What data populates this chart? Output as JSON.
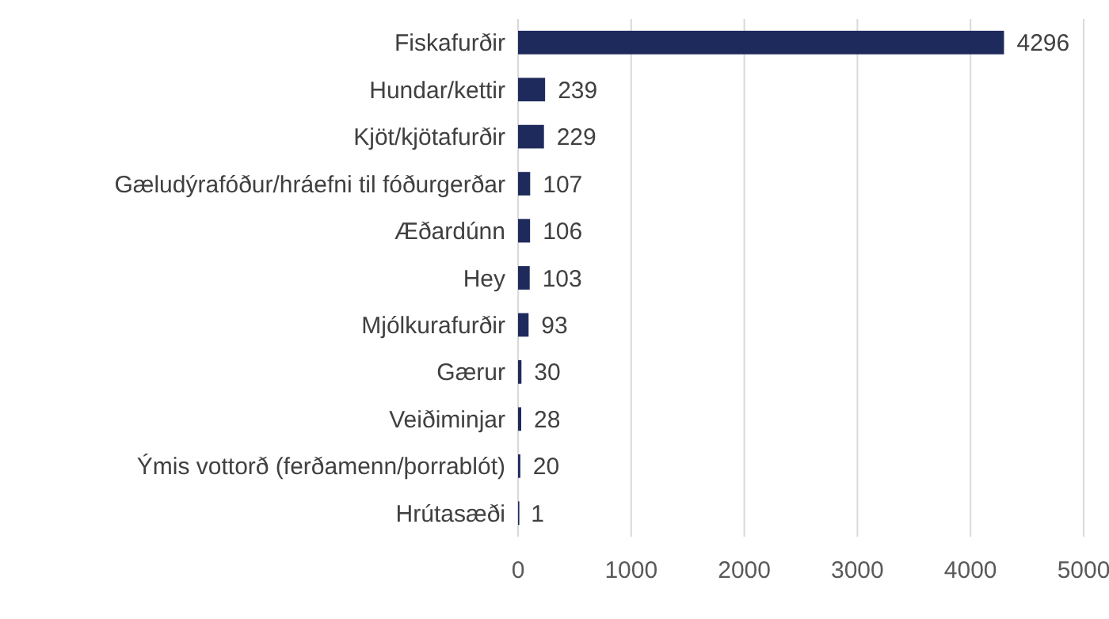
{
  "chart_data": {
    "type": "bar",
    "orientation": "horizontal",
    "categories": [
      "Fiskafurðir",
      "Hundar/kettir",
      "Kjöt/kjötafurðir",
      "Gæludýrafóður/hráefni til fóðurgerðar",
      "Æðardúnn",
      "Hey",
      "Mjólkurafurðir",
      "Gærur",
      "Veiðiminjar",
      "Ýmis vottorð (ferðamenn/þorrablót)",
      "Hrútasæði"
    ],
    "values": [
      4296,
      239,
      229,
      107,
      106,
      103,
      93,
      30,
      28,
      20,
      1
    ],
    "color": "#1f2a5c",
    "xlim": [
      0,
      5000
    ],
    "xticks": [
      0,
      1000,
      2000,
      3000,
      4000,
      5000
    ],
    "grid": "x",
    "data_labels": true
  }
}
